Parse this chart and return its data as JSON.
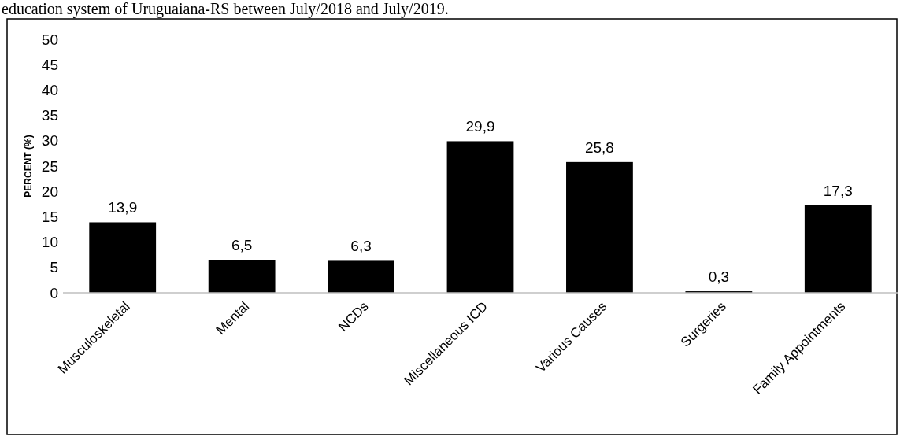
{
  "chart_data": {
    "type": "bar",
    "title": "education system of Uruguaiana-RS between July/2018 and July/2019.",
    "ylabel": "PERCENT (%)",
    "categories": [
      "Musculoskeletal",
      "Mental",
      "NCDs",
      "Miscellaneous ICD",
      "Various Causes",
      "Surgeries",
      "Family Appointments"
    ],
    "values": [
      13.9,
      6.5,
      6.3,
      29.9,
      25.8,
      0.3,
      17.3
    ],
    "value_labels": [
      "13,9",
      "6,5",
      "6,3",
      "29,9",
      "25,8",
      "0,3",
      "17,3"
    ],
    "color": "#000000",
    "ylim": [
      0,
      50
    ],
    "yticks": [
      0,
      5,
      10,
      15,
      20,
      25,
      30,
      35,
      40,
      45,
      50
    ],
    "grid": false
  }
}
